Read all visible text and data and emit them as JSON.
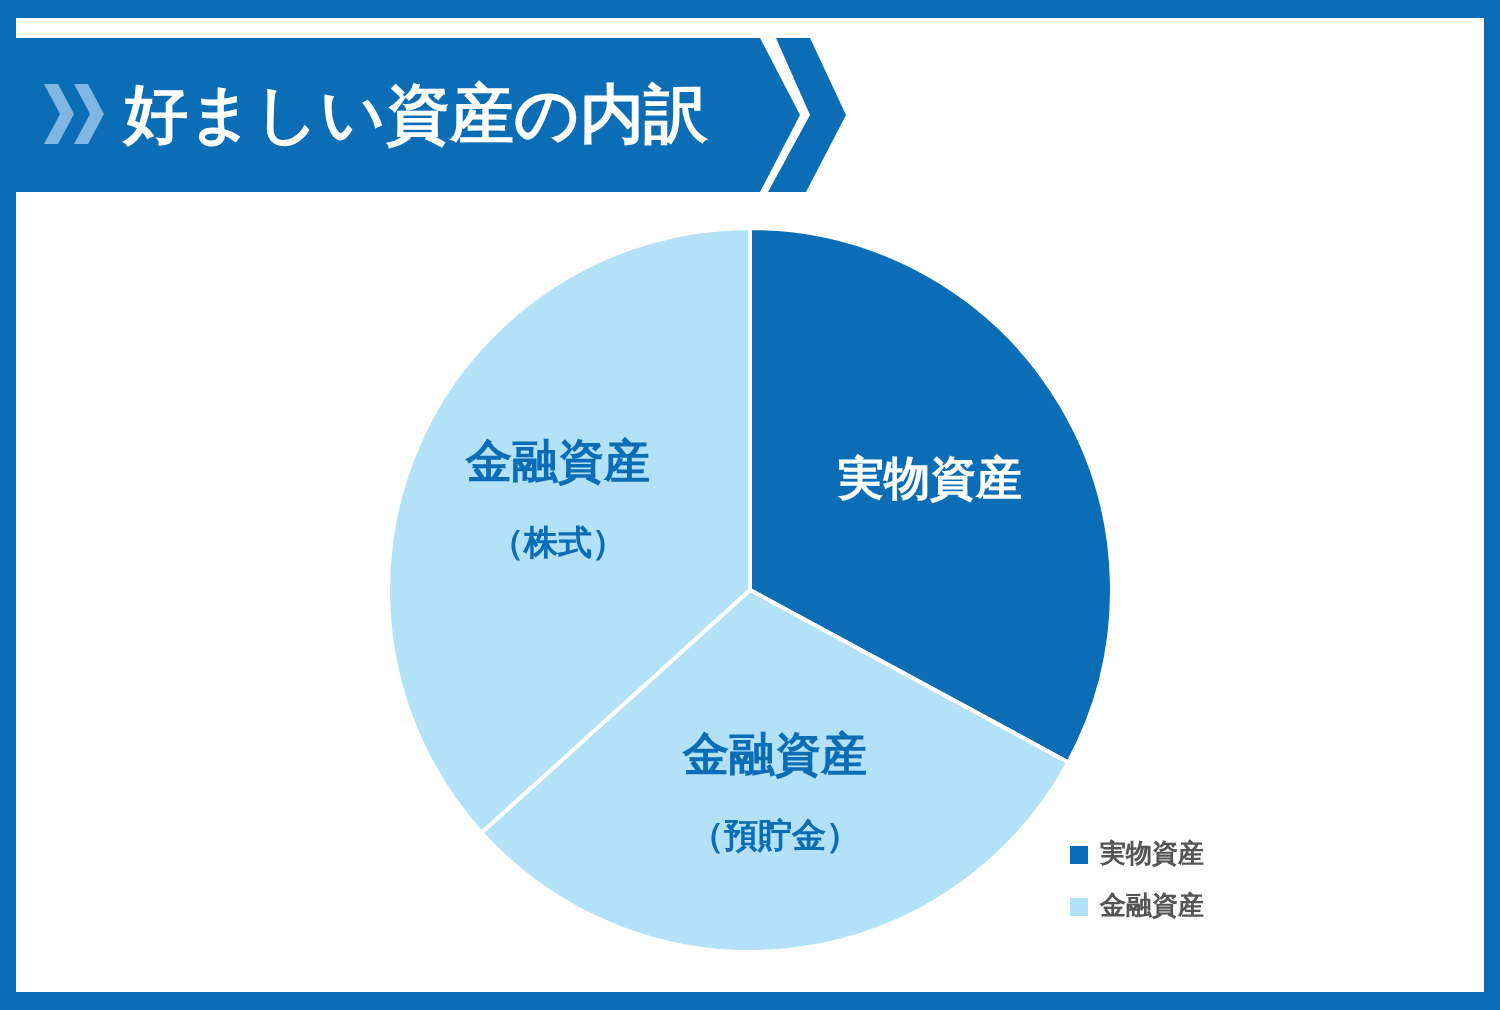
{
  "chart_data": {
    "type": "pie",
    "title": "好ましい資産の内訳",
    "categories": [
      "実物資産",
      "金融資産（預貯金）",
      "金融資産（株式）"
    ],
    "values": [
      32.9,
      30.4,
      36.7
    ],
    "colors": [
      "#0b6db6",
      "#b3e1f7",
      "#b3e1f7"
    ],
    "annotations": [
      "実物資産",
      "金融資産"
    ]
  }
}
